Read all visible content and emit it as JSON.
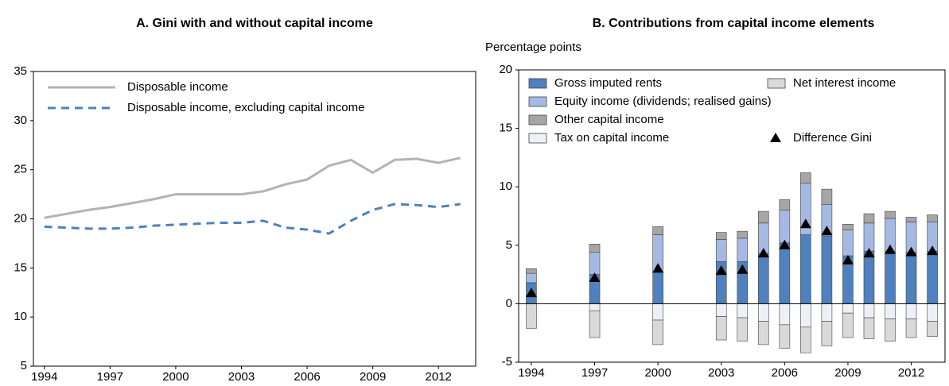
{
  "chart_data": [
    {
      "type": "line",
      "title": "A. Gini with and without capital income",
      "x": [
        1994,
        1995,
        1996,
        1997,
        1998,
        1999,
        2000,
        2001,
        2002,
        2003,
        2004,
        2005,
        2006,
        2007,
        2008,
        2009,
        2010,
        2011,
        2012,
        2013
      ],
      "series": [
        {
          "name": "Disposable income",
          "color": "#b3b3b3",
          "dashed": false,
          "values": [
            20.1,
            20.5,
            20.9,
            21.2,
            21.6,
            22.0,
            22.5,
            22.5,
            22.5,
            22.5,
            22.8,
            23.5,
            24.0,
            25.4,
            26.0,
            24.7,
            26.0,
            26.1,
            25.7,
            26.2
          ]
        },
        {
          "name": "Disposable income, excluding capital income",
          "color": "#4e81bd",
          "dashed": true,
          "values": [
            19.2,
            19.1,
            19.0,
            19.0,
            19.1,
            19.3,
            19.4,
            19.5,
            19.6,
            19.6,
            19.8,
            19.1,
            18.9,
            18.5,
            19.8,
            20.9,
            21.5,
            21.4,
            21.2,
            21.5
          ]
        }
      ],
      "xlim": [
        1993.5,
        2013.7
      ],
      "xticks": [
        1994,
        1997,
        2000,
        2003,
        2006,
        2009,
        2012
      ],
      "ylim": [
        5,
        35
      ],
      "yticks": [
        5,
        10,
        15,
        20,
        25,
        30,
        35
      ],
      "legend": "top-left"
    },
    {
      "type": "bar",
      "title": "B. Contributions from capital income elements",
      "y_label": "Percentage points",
      "stacked": true,
      "x": [
        1994,
        1997,
        2000,
        2003,
        2004,
        2005,
        2006,
        2007,
        2008,
        2009,
        2010,
        2011,
        2012,
        2013
      ],
      "series": [
        {
          "name": "Gross imputed rents",
          "color": "#4e81bd",
          "values": [
            1.8,
            2.5,
            2.7,
            3.6,
            3.6,
            4.3,
            5.2,
            5.9,
            5.8,
            4.1,
            4.5,
            4.5,
            4.4,
            4.5
          ]
        },
        {
          "name": "Equity income (dividends; realised gains)",
          "color": "#a6b9e3",
          "values": [
            0.8,
            1.9,
            3.2,
            1.9,
            2.0,
            2.6,
            2.8,
            4.4,
            2.7,
            2.2,
            2.4,
            2.8,
            2.6,
            2.5
          ]
        },
        {
          "name": "Other capital income",
          "color": "#a6a6a6",
          "values": [
            0.4,
            0.7,
            0.7,
            0.6,
            0.6,
            1.0,
            0.9,
            0.9,
            1.3,
            0.5,
            0.8,
            0.6,
            0.4,
            0.6
          ]
        },
        {
          "name": "Tax on capital income",
          "color": "#eef0f8",
          "values": [
            0,
            -0.6,
            -1.4,
            -1.1,
            -1.2,
            -1.5,
            -1.8,
            -2.0,
            -1.5,
            -0.8,
            -1.2,
            -1.3,
            -1.3,
            -1.5
          ]
        },
        {
          "name": "Net interest income",
          "color": "#d9d9d9",
          "values": [
            -2.1,
            -2.3,
            -2.1,
            -2.0,
            -2.0,
            -2.0,
            -2.0,
            -2.2,
            -2.1,
            -2.1,
            -1.8,
            -1.9,
            -1.6,
            -1.3
          ]
        },
        {
          "name": "Difference Gini",
          "color": "#000000",
          "marker": "triangle",
          "values": [
            0.9,
            2.2,
            3.0,
            2.8,
            2.9,
            4.3,
            5.0,
            6.8,
            6.2,
            3.7,
            4.3,
            4.6,
            4.4,
            4.5
          ]
        }
      ],
      "xlim": [
        1993.4,
        2013.6
      ],
      "xticks": [
        1994,
        1997,
        2000,
        2003,
        2006,
        2009,
        2012
      ],
      "ylim": [
        -5,
        20
      ],
      "yticks": [
        -5,
        0,
        5,
        10,
        15,
        20
      ]
    }
  ]
}
